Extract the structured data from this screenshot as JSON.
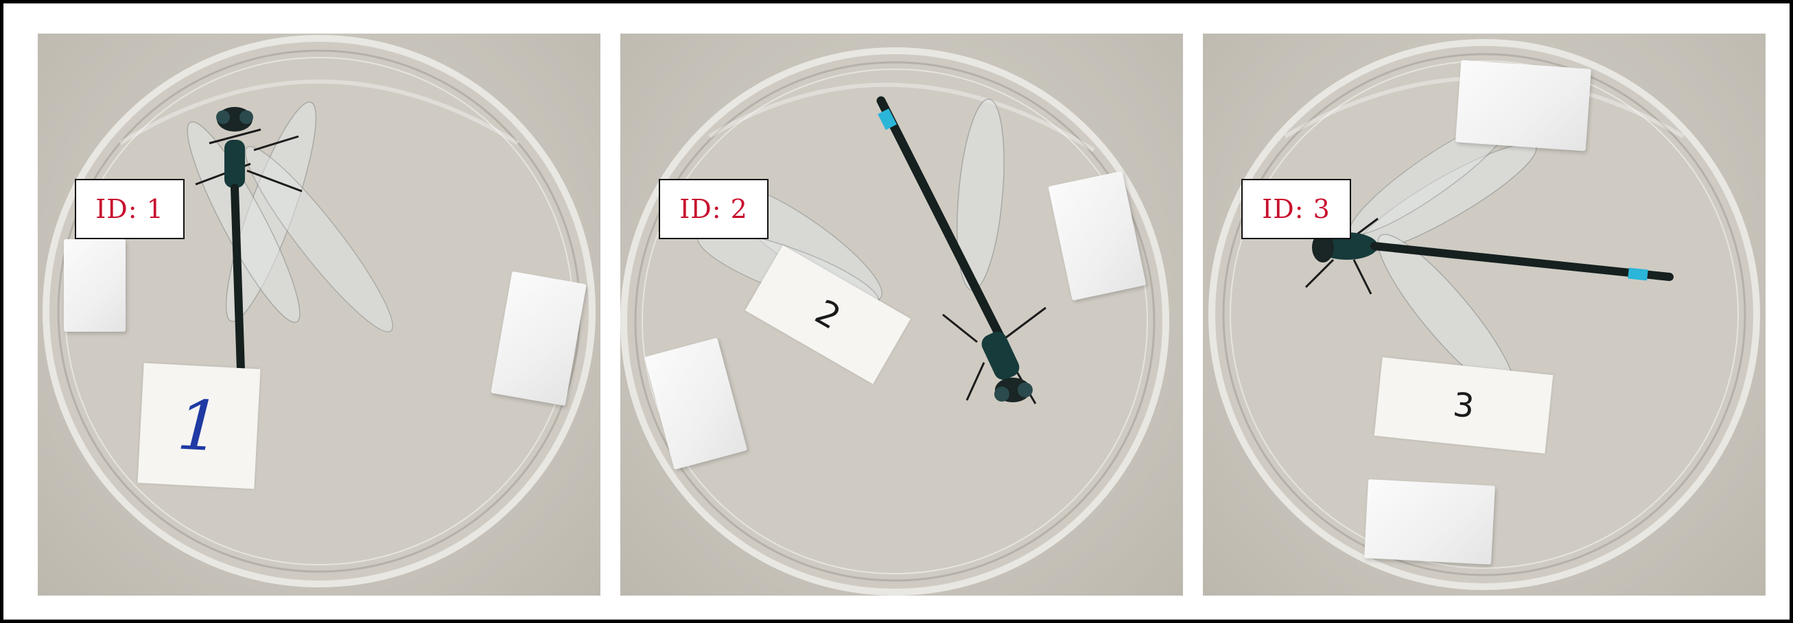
{
  "panels": [
    {
      "id_label": "ID: 1",
      "note_label": "1"
    },
    {
      "id_label": "ID: 2",
      "note_label": "2"
    },
    {
      "id_label": "ID: 3",
      "note_label": "3"
    }
  ],
  "colors": {
    "id_text": "#c8102e",
    "background": "#c9c5bc",
    "dragonfly_body": "#15201f",
    "dragonfly_accent": "#2bb5d8"
  },
  "icons": {
    "specimen": "dragonfly-icon",
    "dish": "petri-dish"
  }
}
